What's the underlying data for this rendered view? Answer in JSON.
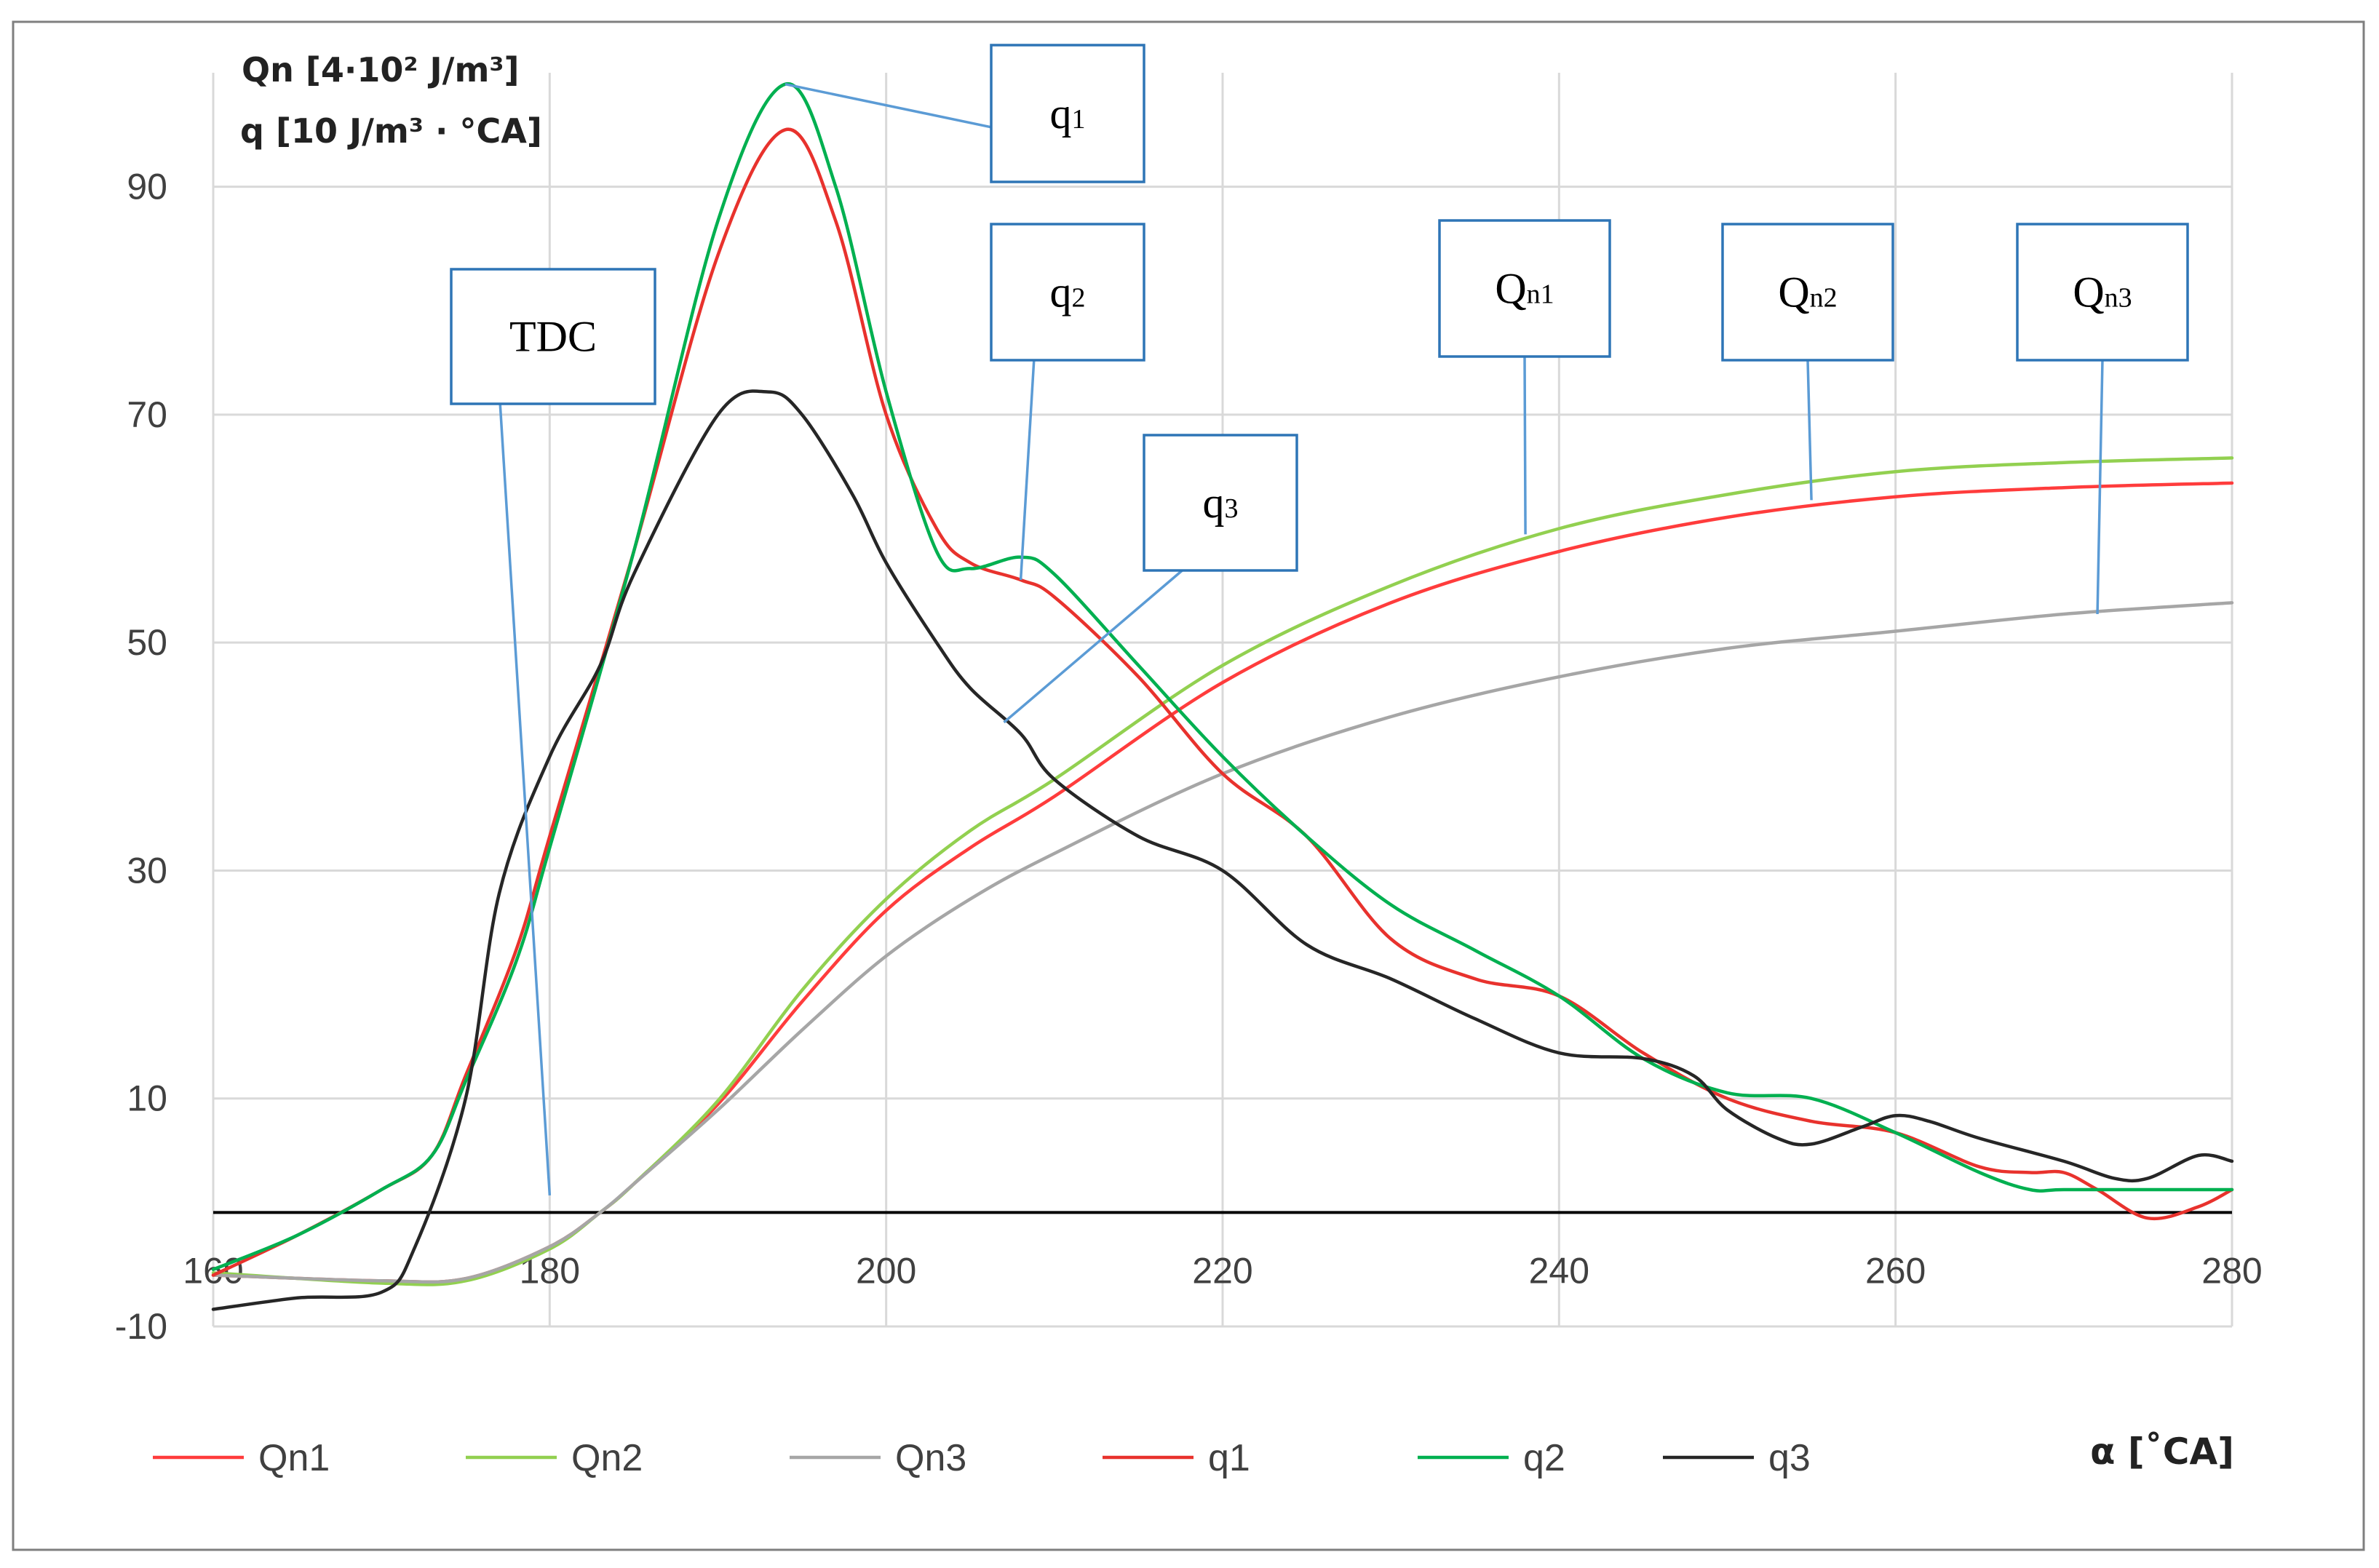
{
  "chart_data": {
    "type": "line",
    "ylabel_line1": "Qn [4·10² J/m³]",
    "ylabel_line2": "q [10 J/m³ · °CA]",
    "xlabel": "α [˚CA]",
    "xlim": [
      160,
      280
    ],
    "ylim": [
      -10,
      100
    ],
    "x_ticks": [
      160,
      180,
      200,
      220,
      240,
      260,
      280
    ],
    "y_ticks": [
      -10,
      10,
      30,
      50,
      70,
      90
    ],
    "grid": "vertical and horizontal at major ticks",
    "legend_position": "bottom",
    "series": [
      {
        "name": "Qn1",
        "color": "#ff3c3c",
        "x": [
          160,
          170,
          175,
          180,
          183,
          185,
          190,
          195,
          200,
          205,
          210,
          220,
          230,
          240,
          250,
          260,
          270,
          280
        ],
        "y": [
          -5.5,
          -6.0,
          -5.8,
          -3.0,
          0,
          2.5,
          9.5,
          18.5,
          26.5,
          32.0,
          36.5,
          46.5,
          53.5,
          58.0,
          61.0,
          62.8,
          63.6,
          64.0
        ]
      },
      {
        "name": "Qn2",
        "color": "#92d050",
        "x": [
          160,
          170,
          175,
          180,
          183,
          185,
          190,
          195,
          200,
          205,
          210,
          220,
          230,
          240,
          250,
          260,
          270,
          280
        ],
        "y": [
          -5.3,
          -6.2,
          -6.0,
          -3.2,
          0,
          2.5,
          9.8,
          19.5,
          27.5,
          33.5,
          38.0,
          48.0,
          55.0,
          60.0,
          63.0,
          65.0,
          65.8,
          66.2
        ]
      },
      {
        "name": "Qn3",
        "color": "#a6a6a6",
        "x": [
          160,
          170,
          175,
          180,
          183,
          185,
          190,
          195,
          200,
          205,
          210,
          220,
          230,
          240,
          250,
          260,
          270,
          280
        ],
        "y": [
          -5.5,
          -6.0,
          -5.8,
          -3.0,
          0,
          2.5,
          9.0,
          16.0,
          22.5,
          27.5,
          31.5,
          38.5,
          43.5,
          47.0,
          49.5,
          51.0,
          52.5,
          53.5
        ]
      },
      {
        "name": "q1",
        "color": "#e8322d",
        "x": [
          160,
          165,
          170,
          173,
          175,
          178,
          180,
          185,
          190,
          194,
          197,
          200,
          203,
          205,
          208,
          210,
          215,
          220,
          225,
          230,
          235,
          240,
          245,
          250,
          255,
          260,
          265,
          268,
          270,
          272,
          275,
          278,
          280
        ],
        "y": [
          -5.5,
          -2.0,
          2.0,
          5.0,
          12.0,
          23.0,
          33.0,
          58.0,
          84.0,
          95.0,
          87.0,
          70.0,
          60.0,
          57.0,
          55.5,
          54.0,
          47.0,
          38.5,
          33.0,
          24.0,
          20.5,
          19.0,
          14.0,
          10.0,
          8.0,
          7.0,
          4.0,
          3.5,
          3.5,
          2.0,
          -0.5,
          0.5,
          2.0
        ]
      },
      {
        "name": "q2",
        "color": "#00b050",
        "x": [
          160,
          165,
          170,
          173,
          175,
          178,
          180,
          185,
          190,
          194,
          197,
          200,
          203,
          205,
          208,
          210,
          215,
          220,
          225,
          230,
          235,
          240,
          245,
          250,
          255,
          260,
          265,
          268,
          270,
          275,
          280
        ],
        "y": [
          -5.0,
          -2.0,
          2.0,
          5.0,
          11.5,
          22.0,
          32.0,
          58.0,
          87.0,
          99.0,
          90.0,
          72.0,
          58.0,
          56.5,
          57.5,
          56.0,
          48.0,
          40.0,
          33.0,
          27.0,
          23.0,
          19.0,
          13.5,
          10.5,
          10.0,
          7.0,
          3.5,
          2.0,
          2.0,
          2.0,
          2.0
        ]
      },
      {
        "name": "q3",
        "color": "#262626",
        "x": [
          160,
          165,
          170,
          172,
          175,
          177,
          180,
          183,
          185,
          190,
          193,
          195,
          198,
          200,
          203,
          205,
          208,
          210,
          215,
          220,
          225,
          230,
          235,
          240,
          245,
          248,
          250,
          253,
          255,
          258,
          260,
          262,
          265,
          270,
          273,
          275,
          278,
          280
        ],
        "y": [
          -8.5,
          -7.5,
          -7.0,
          -3.0,
          10.0,
          28.0,
          40.0,
          48.0,
          56.0,
          70.0,
          72.0,
          70.0,
          63.0,
          57.0,
          50.0,
          46.0,
          42.0,
          38.0,
          33.0,
          30.0,
          23.5,
          20.5,
          17.0,
          14.0,
          13.5,
          12.0,
          9.0,
          6.5,
          6.0,
          7.5,
          8.5,
          8.0,
          6.5,
          4.5,
          3.0,
          3.0,
          5.0,
          4.5
        ]
      }
    ],
    "annotations": [
      {
        "label": "TDC",
        "sub": "",
        "target_x": 180,
        "target_y": 1.5
      },
      {
        "label": "q",
        "sub": "1",
        "target_x": 194,
        "target_y": 99
      },
      {
        "label": "q",
        "sub": "2",
        "target_x": 208,
        "target_y": 55.5
      },
      {
        "label": "q",
        "sub": "3",
        "target_x": 207,
        "target_y": 43
      },
      {
        "label": "Q",
        "sub": "n1",
        "target_x": 238,
        "target_y": 59.5
      },
      {
        "label": "Q",
        "sub": "n2",
        "target_x": 255,
        "target_y": 62.5
      },
      {
        "label": "Q",
        "sub": "n3",
        "target_x": 272,
        "target_y": 52.5
      }
    ]
  }
}
